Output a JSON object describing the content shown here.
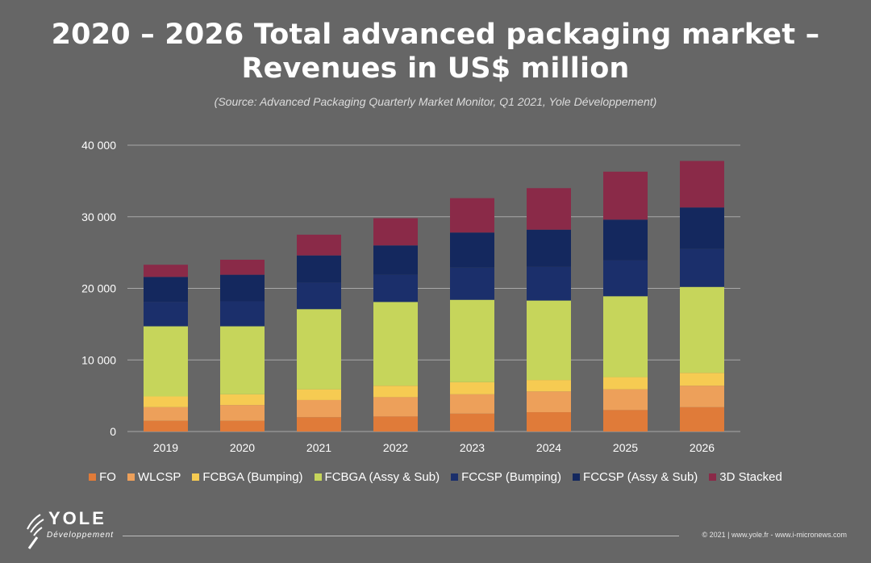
{
  "title": "2020 – 2026 Total advanced packaging market – Revenues in US$ million",
  "subtitle": "(Source: Advanced Packaging Quarterly Market Monitor, Q1 2021, Yole Développement)",
  "footer": {
    "copyright": "© 2021 | www.yole.fr - www.i-micronews.com"
  },
  "logo": {
    "name": "YOLE",
    "sub": "Développement"
  },
  "chart_data": {
    "type": "bar",
    "stacked": true,
    "categories": [
      "2019",
      "2020",
      "2021",
      "2022",
      "2023",
      "2024",
      "2025",
      "2026"
    ],
    "ylim": [
      0,
      40000
    ],
    "yticks": [
      0,
      10000,
      20000,
      30000,
      40000
    ],
    "ytick_labels": [
      "0",
      "10 000",
      "20 000",
      "30 000",
      "40 000"
    ],
    "grid": true,
    "legend_position": "bottom",
    "series": [
      {
        "name": "FO",
        "color": "#e07b39",
        "values": [
          1500,
          1500,
          2000,
          2100,
          2500,
          2700,
          3000,
          3400
        ]
      },
      {
        "name": "WLCSP",
        "color": "#eda05a",
        "values": [
          1900,
          2200,
          2400,
          2700,
          2700,
          2900,
          2900,
          3000
        ]
      },
      {
        "name": "FCBGA (Bumping)",
        "color": "#f6cb52",
        "values": [
          1500,
          1500,
          1500,
          1600,
          1700,
          1600,
          1700,
          1800
        ]
      },
      {
        "name": "FCBGA (Assy & Sub)",
        "color": "#c6d55b",
        "values": [
          9800,
          9500,
          11200,
          11700,
          11500,
          11100,
          11300,
          12000
        ]
      },
      {
        "name": "FCCSP (Bumping)",
        "color": "#1b2f6b",
        "values": [
          3400,
          3500,
          3700,
          3800,
          4500,
          4700,
          5000,
          5300
        ]
      },
      {
        "name": "FCCSP (Assy & Sub)",
        "color": "#14285e",
        "values": [
          3500,
          3700,
          3800,
          4100,
          4900,
          5200,
          5700,
          5800
        ]
      },
      {
        "name": "3D Stacked",
        "color": "#8a2a48",
        "values": [
          1700,
          2100,
          2900,
          3800,
          4800,
          5800,
          6700,
          6500
        ]
      }
    ]
  }
}
